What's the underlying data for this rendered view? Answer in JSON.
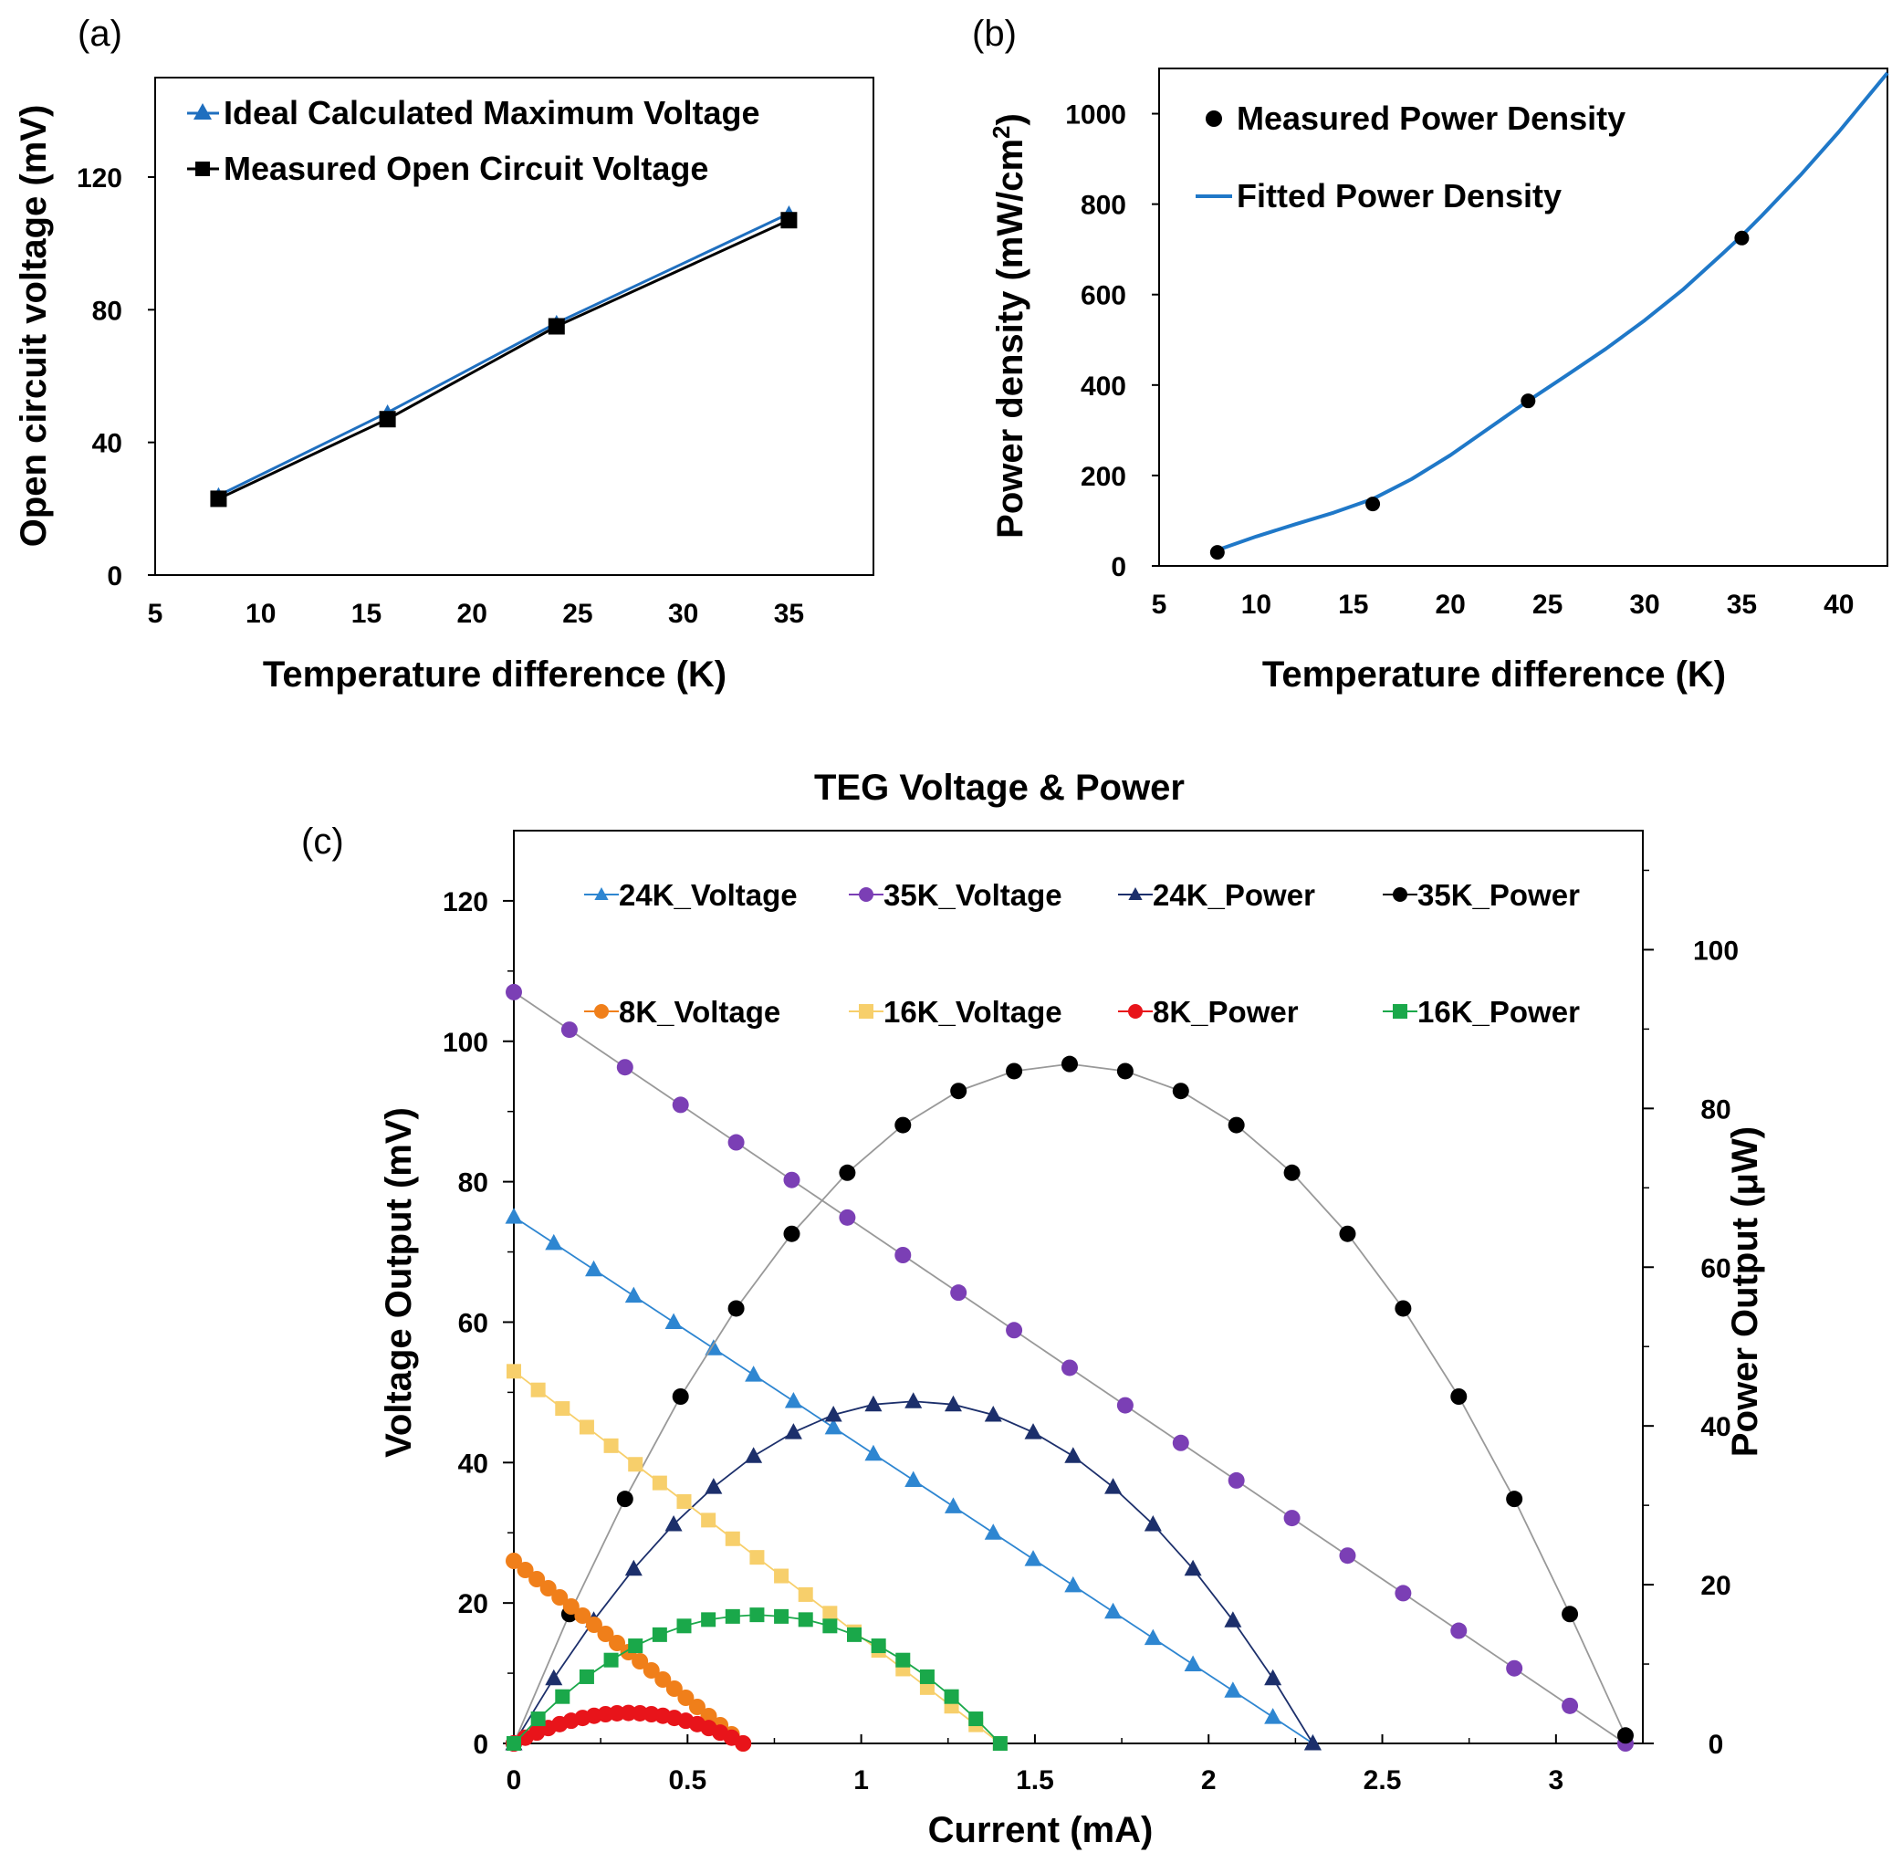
{
  "chart_data": [
    {
      "panel": "(a)",
      "type": "line",
      "xlabel": "Temperature difference (K)",
      "ylabel": "Open circuit voltage (mV)",
      "xlim": [
        5,
        39
      ],
      "ylim": [
        0,
        150
      ],
      "xticks": [
        "5",
        "10",
        "15",
        "20",
        "25",
        "30",
        "35"
      ],
      "yticks": [
        "0",
        "40",
        "80",
        "120"
      ],
      "legend_position": "top-left",
      "series": [
        {
          "name": "Ideal Calculated Maximum Voltage",
          "color": "#1f6fbf",
          "marker": "triangle",
          "x": [
            8,
            16,
            24,
            35
          ],
          "values": [
            24,
            49,
            76,
            109
          ]
        },
        {
          "name": "Measured Open Circuit Voltage",
          "color": "#000000",
          "marker": "square",
          "x": [
            8,
            16,
            24,
            35
          ],
          "values": [
            23,
            47,
            75,
            107
          ]
        }
      ]
    },
    {
      "panel": "(b)",
      "type": "scatter",
      "xlabel": "Temperature difference (K)",
      "ylabel_main": "Power density (mW/cm",
      "ylabel_sup": "2",
      "ylabel_end": ")",
      "xlim": [
        5,
        42.5
      ],
      "ylim": [
        0,
        1100
      ],
      "xticks": [
        "5",
        "10",
        "15",
        "20",
        "25",
        "30",
        "35",
        "40"
      ],
      "yticks": [
        "0",
        "200",
        "400",
        "600",
        "800",
        "1000"
      ],
      "legend_position": "top-left",
      "series": [
        {
          "name": "Measured Power Density",
          "color": "#000000",
          "marker": "circle",
          "x": [
            8,
            16,
            24,
            35
          ],
          "values": [
            30,
            137,
            365,
            725
          ]
        },
        {
          "name": "Fitted Power Density",
          "color": "#1f78c8",
          "marker": "line",
          "x": [
            8,
            10,
            12,
            14,
            16,
            18,
            20,
            22,
            24,
            26,
            28,
            30,
            32,
            34,
            35,
            36,
            38,
            40,
            42.5
          ],
          "values": [
            35,
            65,
            92,
            118,
            148,
            192,
            245,
            305,
            365,
            422,
            480,
            543,
            612,
            690,
            730,
            773,
            863,
            960,
            1090
          ]
        }
      ]
    },
    {
      "panel": "(c)",
      "type": "line",
      "title": "TEG Voltage & Power",
      "xlabel": "Current (mA)",
      "ylabel": "Voltage  Output (mV)",
      "ylabel2": "Power Output (μW)",
      "xlim": [
        0,
        3.25
      ],
      "ylim": [
        0,
        130
      ],
      "ylim2": [
        0,
        115
      ],
      "xticks": [
        "0",
        "0.5",
        "1",
        "1.5",
        "2",
        "2.5",
        "3"
      ],
      "yticks": [
        "0",
        "20",
        "40",
        "60",
        "80",
        "100",
        "120"
      ],
      "yticks2": [
        "0",
        "20",
        "40",
        "60",
        "80",
        "100"
      ],
      "legend_position": "top",
      "series": [
        {
          "name": "24K_Voltage",
          "color": "#2e86d1",
          "marker": "triangle",
          "axis": "left",
          "x": [
            0,
            0.115,
            0.23,
            0.345,
            0.46,
            0.575,
            0.69,
            0.805,
            0.92,
            1.035,
            1.15,
            1.265,
            1.38,
            1.495,
            1.61,
            1.725,
            1.84,
            1.955,
            2.07,
            2.185,
            2.3
          ],
          "values": [
            75,
            71.25,
            67.5,
            63.75,
            60,
            56.25,
            52.5,
            48.75,
            45,
            41.25,
            37.5,
            33.75,
            30,
            26.25,
            22.5,
            18.75,
            15,
            11.25,
            7.5,
            3.75,
            0
          ]
        },
        {
          "name": "35K_Voltage",
          "color": "#7b3fb5",
          "marker": "circle",
          "axis": "left",
          "x": [
            0,
            0.16,
            0.32,
            0.48,
            0.64,
            0.8,
            0.96,
            1.12,
            1.28,
            1.44,
            1.6,
            1.76,
            1.92,
            2.08,
            2.24,
            2.4,
            2.56,
            2.72,
            2.88,
            3.04,
            3.2
          ],
          "values": [
            107,
            101.65,
            96.3,
            90.95,
            85.6,
            80.25,
            74.9,
            69.55,
            64.2,
            58.85,
            53.5,
            48.15,
            42.8,
            37.45,
            32.1,
            26.75,
            21.4,
            16.05,
            10.7,
            5.35,
            0
          ]
        },
        {
          "name": "24K_Power",
          "color": "#1c2f6b",
          "marker": "triangle",
          "axis": "right",
          "x": [
            0,
            0.115,
            0.23,
            0.345,
            0.46,
            0.575,
            0.69,
            0.805,
            0.92,
            1.035,
            1.15,
            1.265,
            1.38,
            1.495,
            1.61,
            1.725,
            1.84,
            1.955,
            2.07,
            2.185,
            2.3
          ],
          "values": [
            0,
            8.2,
            15.5,
            22,
            27.6,
            32.3,
            36.2,
            39.2,
            41.4,
            42.7,
            43.1,
            42.7,
            41.4,
            39.2,
            36.2,
            32.3,
            27.6,
            22,
            15.5,
            8.2,
            0
          ]
        },
        {
          "name": "35K_Power",
          "color": "#000000",
          "marker": "circle",
          "axis": "right",
          "x": [
            0,
            0.16,
            0.32,
            0.48,
            0.64,
            0.8,
            0.96,
            1.12,
            1.28,
            1.44,
            1.6,
            1.76,
            1.92,
            2.08,
            2.24,
            2.4,
            2.56,
            2.72,
            2.88,
            3.04,
            3.2
          ],
          "values": [
            0,
            16.3,
            30.8,
            43.7,
            54.8,
            64.2,
            71.9,
            77.9,
            82.2,
            84.7,
            85.6,
            84.7,
            82.2,
            77.9,
            71.9,
            64.2,
            54.8,
            43.7,
            30.8,
            16.3,
            1
          ]
        },
        {
          "name": "8K_Voltage",
          "color": "#f07f1a",
          "marker": "circle",
          "axis": "left",
          "x": [
            0,
            0.033,
            0.066,
            0.099,
            0.132,
            0.165,
            0.198,
            0.231,
            0.264,
            0.297,
            0.33,
            0.363,
            0.396,
            0.429,
            0.462,
            0.495,
            0.528,
            0.561,
            0.594,
            0.627,
            0.66
          ],
          "values": [
            26,
            24.7,
            23.4,
            22.1,
            20.8,
            19.5,
            18.2,
            16.9,
            15.6,
            14.3,
            13,
            11.7,
            10.4,
            9.1,
            7.8,
            6.5,
            5.2,
            3.9,
            2.6,
            1.3,
            0
          ]
        },
        {
          "name": "16K_Voltage",
          "color": "#f7cf6b",
          "marker": "square",
          "axis": "left",
          "x": [
            0,
            0.07,
            0.14,
            0.21,
            0.28,
            0.35,
            0.42,
            0.49,
            0.56,
            0.63,
            0.7,
            0.77,
            0.84,
            0.91,
            0.98,
            1.05,
            1.12,
            1.19,
            1.26,
            1.33,
            1.4
          ],
          "values": [
            53,
            50.35,
            47.7,
            45.05,
            42.4,
            39.75,
            37.1,
            34.45,
            31.8,
            29.15,
            26.5,
            23.85,
            21.2,
            18.55,
            15.9,
            13.25,
            10.6,
            7.95,
            5.3,
            2.65,
            0
          ]
        },
        {
          "name": "8K_Power",
          "color": "#e8141a",
          "marker": "circle",
          "axis": "right",
          "x": [
            0,
            0.033,
            0.066,
            0.099,
            0.132,
            0.165,
            0.198,
            0.231,
            0.264,
            0.297,
            0.33,
            0.363,
            0.396,
            0.429,
            0.462,
            0.495,
            0.528,
            0.561,
            0.594,
            0.627,
            0.66
          ],
          "values": [
            0,
            0.72,
            1.36,
            1.94,
            2.43,
            2.86,
            3.21,
            3.48,
            3.68,
            3.8,
            3.84,
            3.8,
            3.68,
            3.48,
            3.21,
            2.86,
            2.43,
            1.94,
            1.36,
            0.72,
            0
          ]
        },
        {
          "name": "16K_Power",
          "color": "#1aa84a",
          "marker": "square",
          "axis": "right",
          "x": [
            0,
            0.07,
            0.14,
            0.21,
            0.28,
            0.35,
            0.42,
            0.49,
            0.56,
            0.63,
            0.7,
            0.77,
            0.84,
            0.91,
            0.98,
            1.05,
            1.12,
            1.19,
            1.26,
            1.33,
            1.4
          ],
          "values": [
            0,
            3.1,
            5.9,
            8.4,
            10.5,
            12.3,
            13.7,
            14.8,
            15.6,
            16,
            16.2,
            16,
            15.6,
            14.8,
            13.7,
            12.3,
            10.5,
            8.4,
            5.9,
            3.1,
            0
          ]
        }
      ]
    }
  ]
}
